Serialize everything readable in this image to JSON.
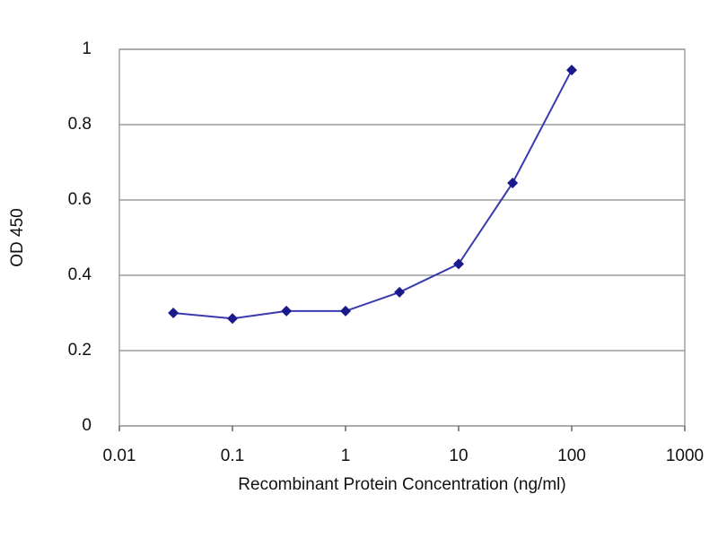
{
  "chart_data": {
    "type": "line",
    "x_label": "Recombinant Protein Concentration (ng/ml)",
    "y_label": "OD 450",
    "x": [
      0.03,
      0.1,
      0.3,
      1,
      3,
      10,
      30,
      100
    ],
    "series": [
      {
        "color": "#1a1a8c",
        "values": [
          0.3,
          0.285,
          0.305,
          0.305,
          0.355,
          0.43,
          0.645,
          0.945
        ]
      }
    ],
    "xscale": "log",
    "xlim": [
      0.01,
      1000
    ],
    "xticks": [
      0.01,
      0.1,
      1,
      10,
      100,
      1000
    ],
    "ylim": [
      0,
      1
    ],
    "yticks": [
      0,
      0.2,
      0.4,
      0.6,
      0.8,
      1
    ],
    "grid": true
  }
}
